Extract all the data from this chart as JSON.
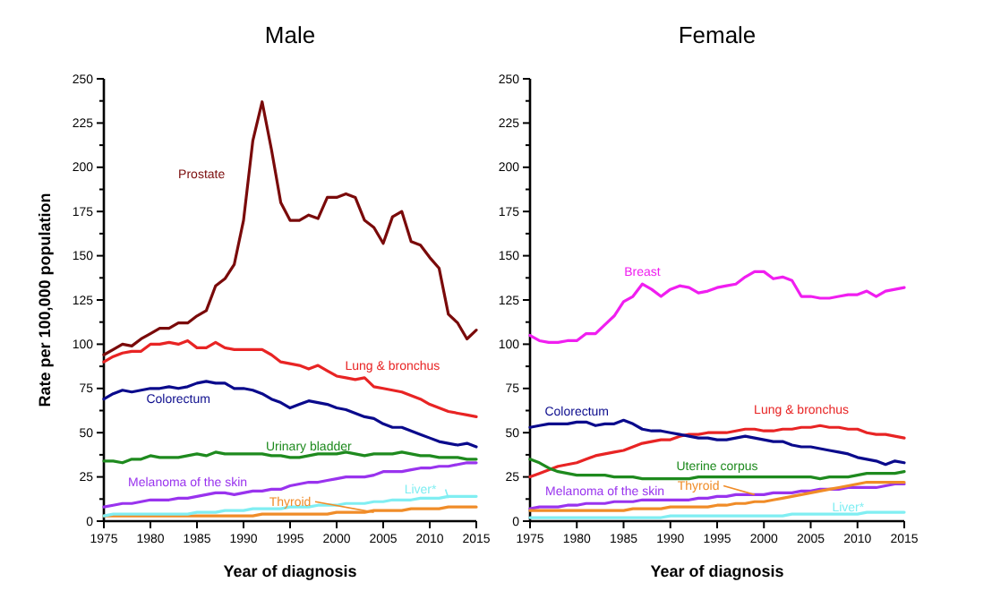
{
  "chart_data": [
    {
      "type": "line",
      "title": "Male",
      "xlabel": "Year of diagnosis",
      "ylabel": "Rate per 100,000 population",
      "xlim": [
        1975,
        2015
      ],
      "ylim": [
        0,
        250
      ],
      "xticks": [
        1975,
        1980,
        1985,
        1990,
        1995,
        2000,
        2005,
        2010,
        2015
      ],
      "yticks": [
        0,
        {
          "value": 12.5,
          "label": null
        },
        25,
        {
          "value": 37.5,
          "label": null
        },
        50,
        {
          "value": 62.5,
          "label": null
        },
        75,
        {
          "value": 87.5,
          "label": null
        },
        100,
        {
          "value": 112.5,
          "label": null
        },
        125,
        {
          "value": 137.5,
          "label": null
        },
        150,
        {
          "value": 162.5,
          "label": null
        },
        175,
        {
          "value": 187.5,
          "label": null
        },
        200,
        {
          "value": 212.5,
          "label": null
        },
        225,
        {
          "value": 237.5,
          "label": null
        },
        250
      ],
      "grid": false,
      "marker": "none",
      "line_style": "solid",
      "x": [
        1975,
        1976,
        1977,
        1978,
        1979,
        1980,
        1981,
        1982,
        1983,
        1984,
        1985,
        1986,
        1987,
        1988,
        1989,
        1990,
        1991,
        1992,
        1993,
        1994,
        1995,
        1996,
        1997,
        1998,
        1999,
        2000,
        2001,
        2002,
        2003,
        2004,
        2005,
        2006,
        2007,
        2008,
        2009,
        2010,
        2011,
        2012,
        2013,
        2014,
        2015
      ],
      "series": [
        {
          "name": "Prostate",
          "color": "#7a0a0a",
          "values": [
            94,
            97,
            100,
            99,
            103,
            106,
            109,
            109,
            112,
            112,
            116,
            119,
            133,
            137,
            145,
            170,
            215,
            237,
            210,
            180,
            170,
            170,
            173,
            171,
            183,
            183,
            185,
            183,
            170,
            166,
            157,
            172,
            175,
            158,
            156,
            149,
            143,
            117,
            112,
            103,
            108
          ]
        },
        {
          "name": "Lung & bronchus",
          "color": "#e82424",
          "values": [
            90,
            93,
            95,
            96,
            96,
            100,
            100,
            101,
            100,
            102,
            98,
            98,
            101,
            98,
            97,
            97,
            97,
            97,
            94,
            90,
            89,
            88,
            86,
            88,
            85,
            82,
            81,
            80,
            81,
            76,
            75,
            74,
            73,
            71,
            69,
            66,
            64,
            62,
            61,
            60,
            59
          ]
        },
        {
          "name": "Colorectum",
          "color": "#0a0a8c",
          "values": [
            69,
            72,
            74,
            73,
            74,
            75,
            75,
            76,
            75,
            76,
            78,
            79,
            78,
            78,
            75,
            75,
            74,
            72,
            69,
            67,
            64,
            66,
            68,
            67,
            66,
            64,
            63,
            61,
            59,
            58,
            55,
            53,
            53,
            51,
            49,
            47,
            45,
            44,
            43,
            44,
            42
          ]
        },
        {
          "name": "Urinary bladder",
          "color": "#1e8a1e",
          "values": [
            34,
            34,
            33,
            35,
            35,
            37,
            36,
            36,
            36,
            37,
            38,
            37,
            39,
            38,
            38,
            38,
            38,
            38,
            37,
            37,
            36,
            36,
            37,
            38,
            38,
            38,
            39,
            38,
            37,
            38,
            38,
            38,
            39,
            38,
            37,
            37,
            36,
            36,
            36,
            35,
            35
          ]
        },
        {
          "name": "Melanoma of the skin",
          "color": "#9933ee",
          "values": [
            8,
            9,
            10,
            10,
            11,
            12,
            12,
            12,
            13,
            13,
            14,
            15,
            16,
            16,
            15,
            16,
            17,
            17,
            18,
            18,
            20,
            21,
            22,
            22,
            23,
            24,
            25,
            25,
            25,
            26,
            28,
            28,
            28,
            29,
            30,
            30,
            31,
            31,
            32,
            33,
            33
          ]
        },
        {
          "name": "Thyroid",
          "color": "#f08c28",
          "values": [
            3,
            3,
            3,
            3,
            3,
            3,
            3,
            3,
            3,
            3,
            3,
            3,
            3,
            3,
            3,
            3,
            3,
            4,
            4,
            4,
            4,
            4,
            4,
            4,
            4,
            5,
            5,
            5,
            5,
            6,
            6,
            6,
            6,
            7,
            7,
            7,
            7,
            8,
            8,
            8,
            8
          ]
        },
        {
          "name": "Liver*",
          "color": "#80eef2",
          "values": [
            3,
            4,
            4,
            4,
            4,
            4,
            4,
            4,
            4,
            4,
            5,
            5,
            5,
            6,
            6,
            6,
            7,
            7,
            7,
            7,
            8,
            8,
            8,
            9,
            9,
            9,
            10,
            10,
            10,
            11,
            11,
            12,
            12,
            12,
            13,
            13,
            13,
            14,
            14,
            14,
            14
          ]
        }
      ]
    },
    {
      "type": "line",
      "title": "Female",
      "xlabel": "Year of diagnosis",
      "xlim": [
        1975,
        2015
      ],
      "ylim": [
        0,
        250
      ],
      "xticks": [
        1975,
        1980,
        1985,
        1990,
        1995,
        2000,
        2005,
        2010,
        2015
      ],
      "yticks": [
        0,
        {
          "value": 12.5,
          "label": null
        },
        25,
        {
          "value": 37.5,
          "label": null
        },
        50,
        {
          "value": 62.5,
          "label": null
        },
        75,
        {
          "value": 87.5,
          "label": null
        },
        100,
        {
          "value": 112.5,
          "label": null
        },
        125,
        {
          "value": 137.5,
          "label": null
        },
        150,
        {
          "value": 162.5,
          "label": null
        },
        175,
        {
          "value": 187.5,
          "label": null
        },
        200,
        {
          "value": 212.5,
          "label": null
        },
        225,
        {
          "value": 237.5,
          "label": null
        },
        250
      ],
      "grid": false,
      "marker": "none",
      "line_style": "solid",
      "x": [
        1975,
        1976,
        1977,
        1978,
        1979,
        1980,
        1981,
        1982,
        1983,
        1984,
        1985,
        1986,
        1987,
        1988,
        1989,
        1990,
        1991,
        1992,
        1993,
        1994,
        1995,
        1996,
        1997,
        1998,
        1999,
        2000,
        2001,
        2002,
        2003,
        2004,
        2005,
        2006,
        2007,
        2008,
        2009,
        2010,
        2011,
        2012,
        2013,
        2014,
        2015
      ],
      "series": [
        {
          "name": "Breast",
          "color": "#f01ef0",
          "values": [
            105,
            102,
            101,
            101,
            102,
            102,
            106,
            106,
            111,
            116,
            124,
            127,
            134,
            131,
            127,
            131,
            133,
            132,
            129,
            130,
            132,
            133,
            134,
            138,
            141,
            141,
            137,
            138,
            136,
            127,
            127,
            126,
            126,
            127,
            128,
            128,
            130,
            127,
            130,
            131,
            132
          ]
        },
        {
          "name": "Lung & bronchus",
          "color": "#e82424",
          "values": [
            25,
            27,
            29,
            31,
            32,
            33,
            35,
            37,
            38,
            39,
            40,
            42,
            44,
            45,
            46,
            46,
            48,
            49,
            49,
            50,
            50,
            50,
            51,
            52,
            52,
            51,
            51,
            52,
            52,
            53,
            53,
            54,
            53,
            53,
            52,
            52,
            50,
            49,
            49,
            48,
            47
          ]
        },
        {
          "name": "Colorectum",
          "color": "#0a0a8c",
          "values": [
            53,
            54,
            55,
            55,
            55,
            56,
            56,
            54,
            55,
            55,
            57,
            55,
            52,
            51,
            51,
            50,
            49,
            48,
            47,
            47,
            46,
            46,
            47,
            48,
            47,
            46,
            45,
            45,
            43,
            42,
            42,
            41,
            40,
            39,
            38,
            36,
            35,
            34,
            32,
            34,
            33
          ]
        },
        {
          "name": "Uterine corpus",
          "color": "#1e8a1e",
          "values": [
            35,
            33,
            30,
            28,
            27,
            26,
            26,
            26,
            26,
            25,
            25,
            25,
            24,
            24,
            24,
            24,
            24,
            24,
            25,
            25,
            25,
            25,
            25,
            25,
            25,
            25,
            25,
            25,
            25,
            25,
            25,
            24,
            25,
            25,
            25,
            26,
            27,
            27,
            27,
            27,
            28
          ]
        },
        {
          "name": "Melanoma of the skin",
          "color": "#9933ee",
          "values": [
            7,
            8,
            8,
            8,
            9,
            9,
            10,
            10,
            10,
            11,
            11,
            11,
            12,
            12,
            12,
            12,
            12,
            12,
            13,
            13,
            14,
            14,
            15,
            15,
            15,
            15,
            16,
            16,
            16,
            17,
            17,
            18,
            18,
            18,
            19,
            19,
            19,
            19,
            20,
            21,
            21
          ]
        },
        {
          "name": "Thyroid",
          "color": "#f08c28",
          "values": [
            6,
            6,
            6,
            6,
            6,
            6,
            6,
            6,
            6,
            6,
            6,
            7,
            7,
            7,
            7,
            8,
            8,
            8,
            8,
            8,
            9,
            9,
            10,
            10,
            11,
            11,
            12,
            13,
            14,
            15,
            16,
            17,
            18,
            19,
            20,
            21,
            22,
            22,
            22,
            22,
            22
          ]
        },
        {
          "name": "Liver*",
          "color": "#80eef2",
          "values": [
            2,
            2,
            2,
            2,
            2,
            2,
            2,
            2,
            2,
            2,
            2,
            2,
            2,
            2,
            2,
            3,
            3,
            3,
            3,
            3,
            3,
            3,
            3,
            3,
            3,
            3,
            3,
            3,
            4,
            4,
            4,
            4,
            4,
            4,
            4,
            4,
            5,
            5,
            5,
            5,
            5
          ]
        }
      ]
    }
  ]
}
